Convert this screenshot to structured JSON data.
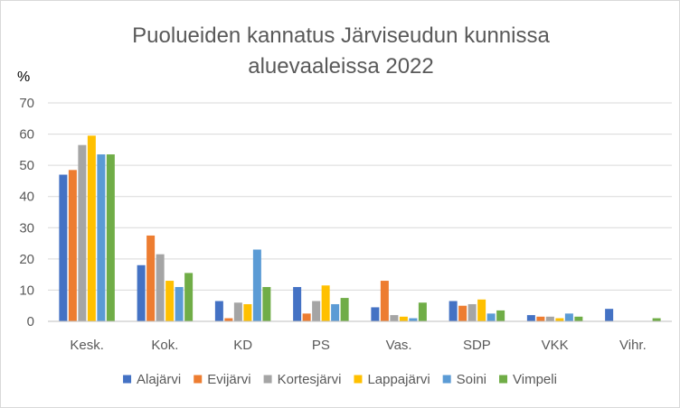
{
  "chart_data": {
    "type": "bar",
    "title_lines": [
      "Puolueiden kannatus Järviseudun kunnissa",
      "aluevaaleissa 2022"
    ],
    "ylabel": "%",
    "xlabel": "",
    "ylim": [
      0,
      70
    ],
    "yticks": [
      0,
      10,
      20,
      30,
      40,
      50,
      60,
      70
    ],
    "grid": true,
    "legend_position": "bottom",
    "categories": [
      "Kesk.",
      "Kok.",
      "KD",
      "PS",
      "Vas.",
      "SDP",
      "VKK",
      "Vihr."
    ],
    "series": [
      {
        "name": "Alajärvi",
        "color": "#4472c4",
        "values": [
          47,
          18,
          6.5,
          11,
          4.5,
          6.5,
          2,
          4
        ]
      },
      {
        "name": "Evijärvi",
        "color": "#ed7d31",
        "values": [
          48.5,
          27.5,
          1,
          2.5,
          13,
          5,
          1.5,
          0
        ]
      },
      {
        "name": "Kortesjärvi",
        "color": "#a5a5a5",
        "values": [
          56.5,
          21.5,
          6,
          6.5,
          2,
          5.5,
          1.5,
          0
        ]
      },
      {
        "name": "Lappajärvi",
        "color": "#ffc000",
        "values": [
          59.5,
          13,
          5.5,
          11.5,
          1.5,
          7,
          1,
          0
        ]
      },
      {
        "name": "Soini",
        "color": "#5b9bd5",
        "values": [
          53.5,
          11,
          23,
          5.5,
          1,
          2.5,
          2.5,
          0
        ]
      },
      {
        "name": "Vimpeli",
        "color": "#70ad47",
        "values": [
          53.5,
          15.5,
          11,
          7.5,
          6,
          3.5,
          1.5,
          1
        ]
      }
    ]
  }
}
